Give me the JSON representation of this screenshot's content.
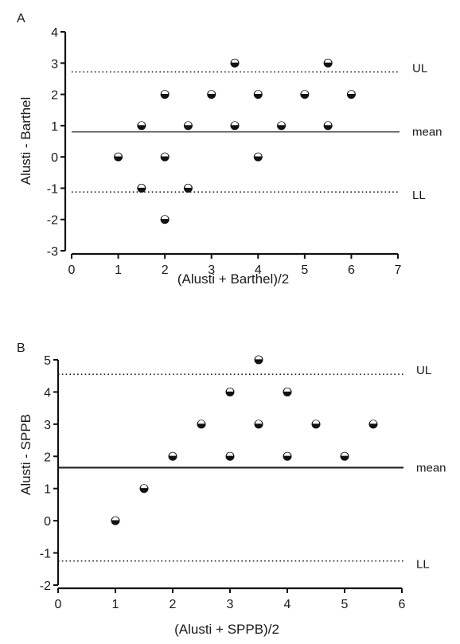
{
  "chart_data": [
    {
      "type": "scatter",
      "panel_label": "A",
      "title": "",
      "xlabel": "(Alusti + Barthel)/2",
      "ylabel": "Alusti - Barthel",
      "xlim": [
        0,
        7
      ],
      "ylim": [
        -3,
        4
      ],
      "xticks": [
        0,
        1,
        2,
        3,
        4,
        5,
        6,
        7
      ],
      "yticks": [
        -3,
        -2,
        -1,
        0,
        1,
        2,
        3,
        4
      ],
      "points": [
        {
          "x": 1,
          "y": 0
        },
        {
          "x": 1.5,
          "y": 1
        },
        {
          "x": 1.5,
          "y": -1
        },
        {
          "x": 2,
          "y": 2
        },
        {
          "x": 2,
          "y": 0
        },
        {
          "x": 2,
          "y": -2
        },
        {
          "x": 2.5,
          "y": 1
        },
        {
          "x": 2.5,
          "y": -1
        },
        {
          "x": 3,
          "y": 2
        },
        {
          "x": 3.5,
          "y": 3
        },
        {
          "x": 3.5,
          "y": 1
        },
        {
          "x": 4,
          "y": 2
        },
        {
          "x": 4,
          "y": 0
        },
        {
          "x": 4.5,
          "y": 1
        },
        {
          "x": 5,
          "y": 2
        },
        {
          "x": 5.5,
          "y": 3
        },
        {
          "x": 5.5,
          "y": 1
        },
        {
          "x": 6,
          "y": 2
        }
      ],
      "reference_lines": [
        {
          "label": "UL",
          "y": 2.72,
          "style": "dotted"
        },
        {
          "label": "mean",
          "y": 0.8,
          "style": "solid"
        },
        {
          "label": "LL",
          "y": -1.12,
          "style": "dotted"
        }
      ]
    },
    {
      "type": "scatter",
      "panel_label": "B",
      "title": "",
      "xlabel": "(Alusti + SPPB)/2",
      "ylabel": "Alusti - SPPB",
      "xlim": [
        0,
        6
      ],
      "ylim": [
        -2,
        5
      ],
      "xticks": [
        0,
        1,
        2,
        3,
        4,
        5,
        6
      ],
      "yticks": [
        -2,
        -1,
        0,
        1,
        2,
        3,
        4,
        5
      ],
      "points": [
        {
          "x": 1,
          "y": 0
        },
        {
          "x": 1.5,
          "y": 1
        },
        {
          "x": 2,
          "y": 2
        },
        {
          "x": 2.5,
          "y": 3
        },
        {
          "x": 3,
          "y": 4
        },
        {
          "x": 3,
          "y": 2
        },
        {
          "x": 3.5,
          "y": 5
        },
        {
          "x": 3.5,
          "y": 3
        },
        {
          "x": 4,
          "y": 4
        },
        {
          "x": 4,
          "y": 2
        },
        {
          "x": 4.5,
          "y": 3
        },
        {
          "x": 5,
          "y": 2
        },
        {
          "x": 5.5,
          "y": 3
        }
      ],
      "reference_lines": [
        {
          "label": "UL",
          "y": 4.55,
          "style": "dotted"
        },
        {
          "label": "mean",
          "y": 1.65,
          "style": "solid"
        },
        {
          "label": "LL",
          "y": -1.25,
          "style": "dotted"
        }
      ]
    }
  ]
}
